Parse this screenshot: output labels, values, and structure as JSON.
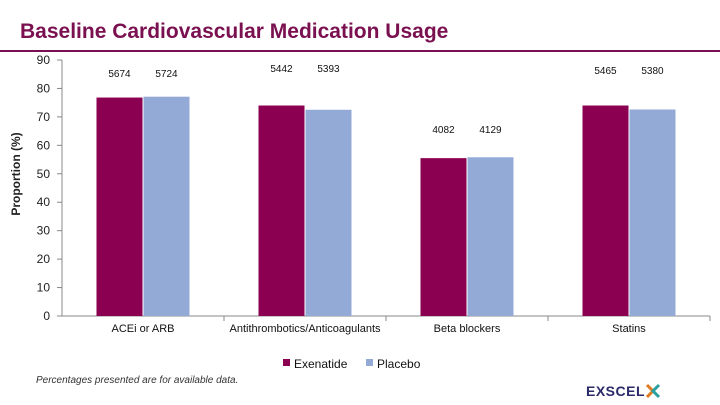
{
  "title": "Baseline Cardiovascular Medication Usage",
  "footnote": "Percentages presented are for available data.",
  "logo": {
    "text": "EXSCEL"
  },
  "colors": {
    "exenatide": "#8b0050",
    "placebo": "#94aad6",
    "title": "#7a1050",
    "axis": "#888888"
  },
  "chart_data": {
    "type": "bar",
    "title": "Baseline Cardiovascular Medication Usage",
    "xlabel": "",
    "ylabel": "Proportion (%)",
    "ylim": [
      0,
      90
    ],
    "yticks": [
      "0",
      "10",
      "20",
      "30",
      "40",
      "50",
      "60",
      "70",
      "80",
      "90"
    ],
    "grid": false,
    "legend": "bottom-center",
    "categories": [
      "ACEi or ARB",
      "Antithrombotics/Anticoagulants",
      "Beta blockers",
      "Statins"
    ],
    "series": [
      {
        "name": "Exenatide",
        "values": [
          76.8,
          74.0,
          55.5,
          74.0
        ],
        "counts": [
          "5674",
          "5442",
          "4082",
          "5465"
        ]
      },
      {
        "name": "Placebo",
        "values": [
          77.1,
          72.5,
          55.8,
          72.6
        ],
        "counts": [
          "5724",
          "5393",
          "4129",
          "5380"
        ]
      }
    ]
  }
}
